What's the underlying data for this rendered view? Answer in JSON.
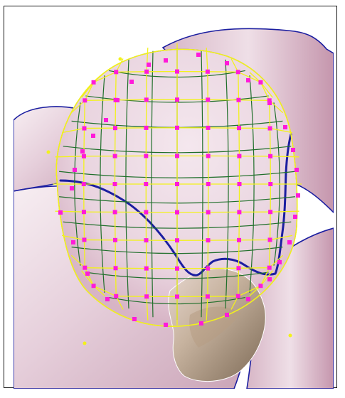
{
  "window": {
    "title": ""
  },
  "editor": {
    "tool": "mesh-warp",
    "colors": {
      "outline": "#1b1ea0",
      "warp_yellow": "#f2f21a",
      "warp_green": "#1f6f2a",
      "control_point": "#ff1ad9",
      "background": "#ffffff",
      "petal_light": "#f1e3ea",
      "petal_mid": "#dcbfcd",
      "petal_dark": "#b88aa1"
    },
    "icons": {
      "control_point": "square-handle-icon",
      "guide_point": "dot-icon"
    }
  }
}
